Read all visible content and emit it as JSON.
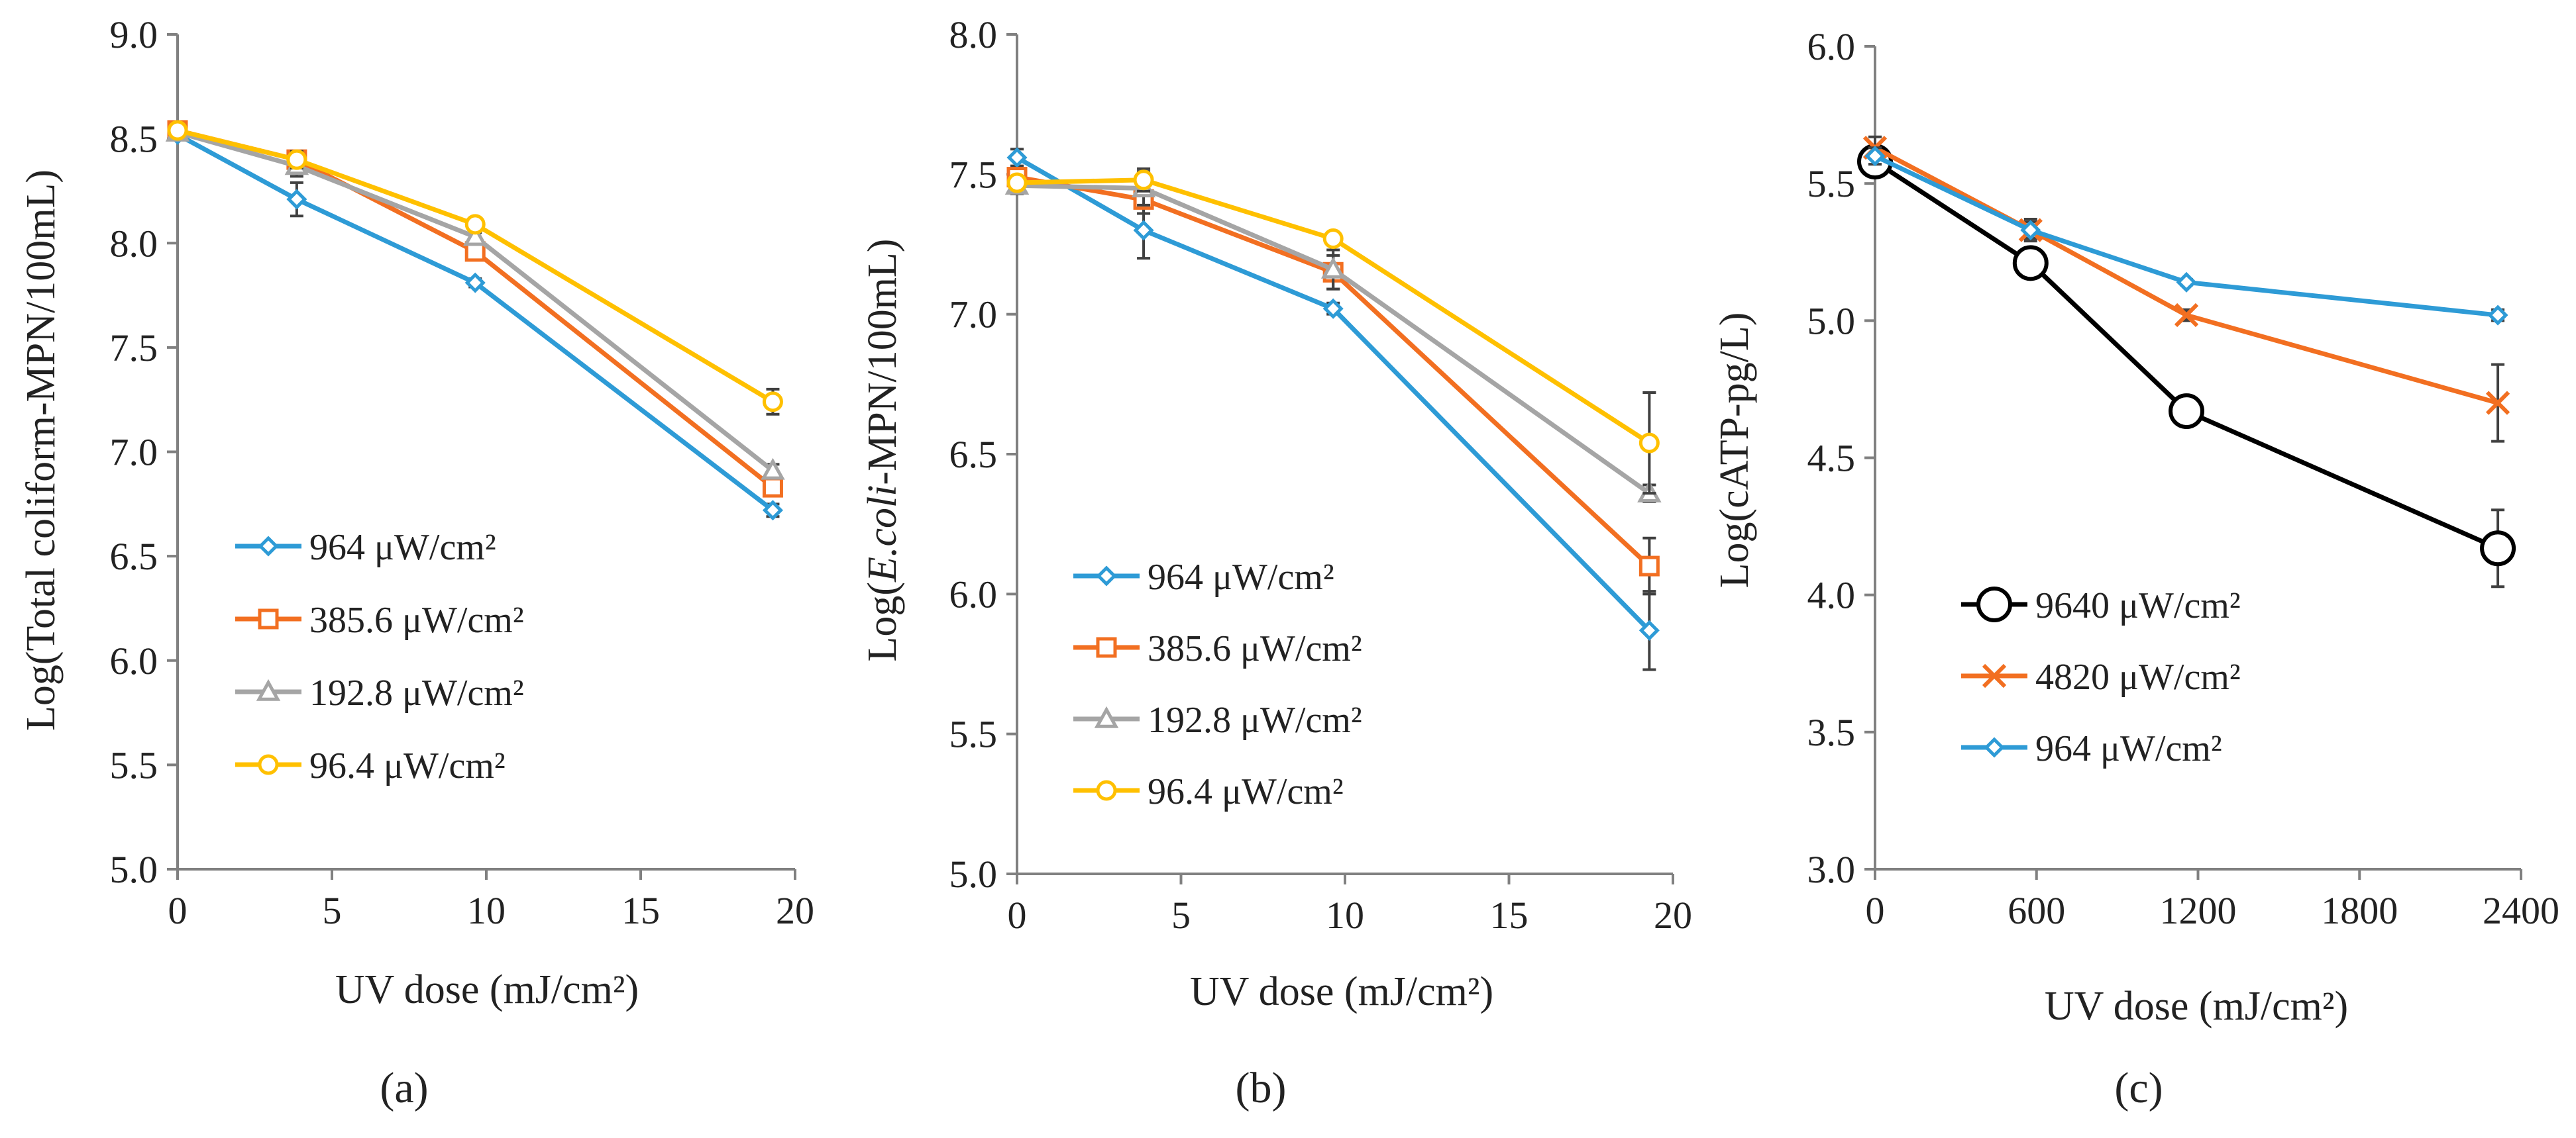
{
  "chart_data": [
    {
      "type": "line",
      "panel_label": "(a)",
      "xlabel": "UV dose (mJ/cm²)",
      "ylabel": "Log(Total coliform-MPN/100mL)",
      "xlim": [
        0,
        20
      ],
      "ylim": [
        5.0,
        9.0
      ],
      "xticks": [
        0,
        5,
        10,
        15,
        20
      ],
      "xtick_labels": [
        "0",
        "5",
        "10",
        "15",
        "20"
      ],
      "yticks": [
        5.0,
        5.5,
        6.0,
        6.5,
        7.0,
        7.5,
        8.0,
        8.5,
        9.0
      ],
      "ytick_labels": [
        "5.0",
        "5.5",
        "6.0",
        "6.5",
        "7.0",
        "7.5",
        "8.0",
        "8.5",
        "9.0"
      ],
      "legend_position": "bottom-left",
      "series": [
        {
          "name": "964 μW/cm²",
          "color": "#2E9BD6",
          "marker": "diamond",
          "x": [
            0,
            3.86,
            9.64,
            19.28
          ],
          "values": [
            8.52,
            8.21,
            7.81,
            6.72
          ],
          "errors": [
            0.02,
            0.08,
            0.02,
            0.03
          ]
        },
        {
          "name": "385.6 μW/cm²",
          "color": "#F26F21",
          "marker": "square",
          "x": [
            0,
            3.86,
            9.64,
            19.28
          ],
          "values": [
            8.54,
            8.4,
            7.96,
            6.83
          ],
          "errors": [
            0.02,
            0.03,
            0.02,
            0.04
          ]
        },
        {
          "name": "192.8 μW/cm²",
          "color": "#A5A5A5",
          "marker": "triangle",
          "x": [
            0,
            3.86,
            9.64,
            19.28
          ],
          "values": [
            8.53,
            8.37,
            8.03,
            6.91
          ],
          "errors": [
            0.02,
            0.05,
            0.02,
            0.03
          ]
        },
        {
          "name": "96.4 μW/cm²",
          "color": "#FFC000",
          "marker": "circle",
          "x": [
            0,
            3.86,
            9.64,
            19.28
          ],
          "values": [
            8.54,
            8.4,
            8.09,
            7.24
          ],
          "errors": [
            0.02,
            0.04,
            0.02,
            0.06
          ]
        }
      ]
    },
    {
      "type": "line",
      "panel_label": "(b)",
      "xlabel": "UV dose (mJ/cm²)",
      "ylabel": "Log(E.coli-MPN/100mL)",
      "xlim": [
        0,
        20
      ],
      "ylim": [
        5.0,
        8.0
      ],
      "xticks": [
        0,
        5,
        10,
        15,
        20
      ],
      "xtick_labels": [
        "0",
        "5",
        "10",
        "15",
        "20"
      ],
      "yticks": [
        5.0,
        5.5,
        6.0,
        6.5,
        7.0,
        7.5,
        8.0
      ],
      "ytick_labels": [
        "5.0",
        "5.5",
        "6.0",
        "6.5",
        "7.0",
        "7.5",
        "8.0"
      ],
      "legend_position": "bottom-left",
      "series": [
        {
          "name": "964 μW/cm²",
          "color": "#2E9BD6",
          "marker": "diamond",
          "x": [
            0,
            3.86,
            9.64,
            19.28
          ],
          "values": [
            7.56,
            7.3,
            7.02,
            5.87
          ],
          "errors": [
            0.03,
            0.1,
            0.02,
            0.14
          ]
        },
        {
          "name": "385.6 μW/cm²",
          "color": "#F26F21",
          "marker": "square",
          "x": [
            0,
            3.86,
            9.64,
            19.28
          ],
          "values": [
            7.49,
            7.41,
            7.15,
            6.1
          ],
          "errors": [
            0.02,
            0.05,
            0.06,
            0.1
          ]
        },
        {
          "name": "192.8 μW/cm²",
          "color": "#A5A5A5",
          "marker": "triangle",
          "x": [
            0,
            3.86,
            9.64,
            19.28
          ],
          "values": [
            7.46,
            7.45,
            7.16,
            6.36
          ],
          "errors": [
            0.03,
            0.06,
            0.07,
            0.03
          ]
        },
        {
          "name": "96.4 μW/cm²",
          "color": "#FFC000",
          "marker": "circle",
          "x": [
            0,
            3.86,
            9.64,
            19.28
          ],
          "values": [
            7.47,
            7.48,
            7.27,
            6.54
          ],
          "errors": [
            0.02,
            0.04,
            0.02,
            0.18
          ]
        }
      ]
    },
    {
      "type": "line",
      "panel_label": "(c)",
      "xlabel": "UV dose (mJ/cm²)",
      "ylabel": "Log(cATP-pg/L)",
      "xlim": [
        0,
        2400
      ],
      "ylim": [
        3.0,
        6.0
      ],
      "xticks": [
        0,
        600,
        1200,
        1800,
        2400
      ],
      "xtick_labels": [
        "0",
        "600",
        "1200",
        "1800",
        "2400"
      ],
      "yticks": [
        3.0,
        3.5,
        4.0,
        4.5,
        5.0,
        5.5,
        6.0
      ],
      "ytick_labels": [
        "3.0",
        "3.5",
        "4.0",
        "4.5",
        "5.0",
        "5.5",
        "6.0"
      ],
      "legend_position": "bottom-left",
      "series": [
        {
          "name": "9640 μW/cm²",
          "color": "#000000",
          "marker": "big-circle",
          "x": [
            0,
            578,
            1157,
            2314
          ],
          "values": [
            5.58,
            5.21,
            4.67,
            4.17
          ],
          "errors": [
            0.04,
            0.05,
            0.02,
            0.14
          ]
        },
        {
          "name": "4820 μW/cm²",
          "color": "#F26F21",
          "marker": "x",
          "x": [
            0,
            578,
            1157,
            2314
          ],
          "values": [
            5.63,
            5.33,
            5.02,
            4.7
          ],
          "errors": [
            0.04,
            0.03,
            0.02,
            0.14
          ]
        },
        {
          "name": "964 μW/cm²",
          "color": "#2E9BD6",
          "marker": "diamond",
          "x": [
            0,
            578,
            1157,
            2314
          ],
          "values": [
            5.6,
            5.33,
            5.14,
            5.02
          ],
          "errors": [
            0.03,
            0.04,
            0.01,
            0.02
          ]
        }
      ]
    }
  ]
}
